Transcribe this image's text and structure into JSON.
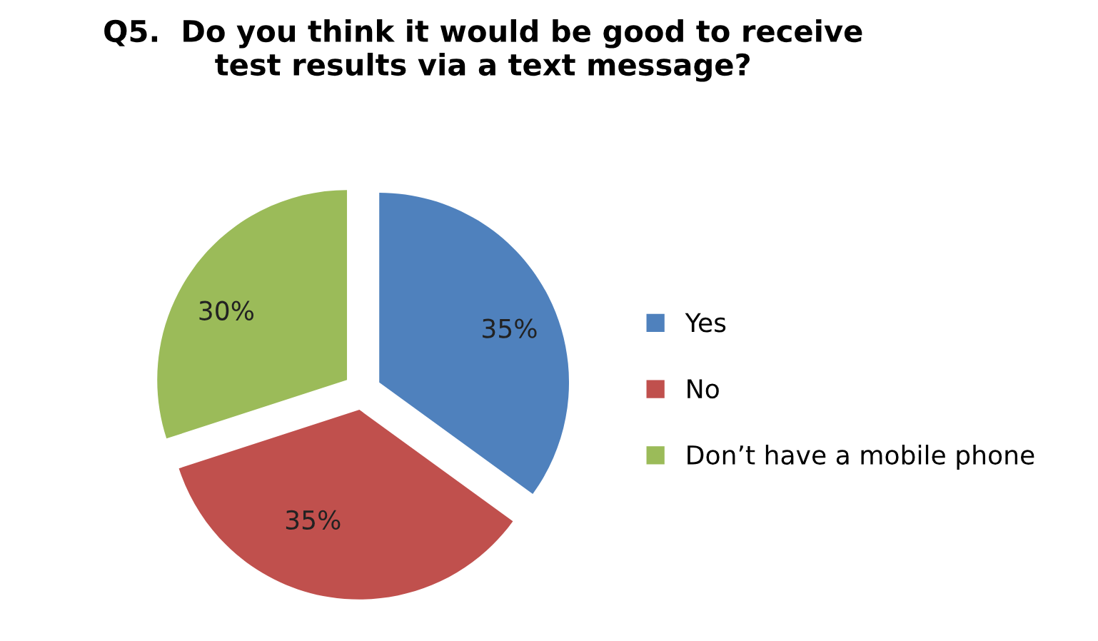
{
  "chart_data": {
    "type": "pie",
    "title": "Q5.  Do you think it would be good to receive\ntest results via a text message?",
    "categories": [
      "Yes",
      "No",
      "Don’t have a mobile phone"
    ],
    "values": [
      35,
      35,
      30
    ],
    "colors": [
      "#4f81bd",
      "#c0504d",
      "#9bbb59"
    ],
    "value_labels": [
      "35%",
      "35%",
      "30%"
    ],
    "legend": "right"
  }
}
